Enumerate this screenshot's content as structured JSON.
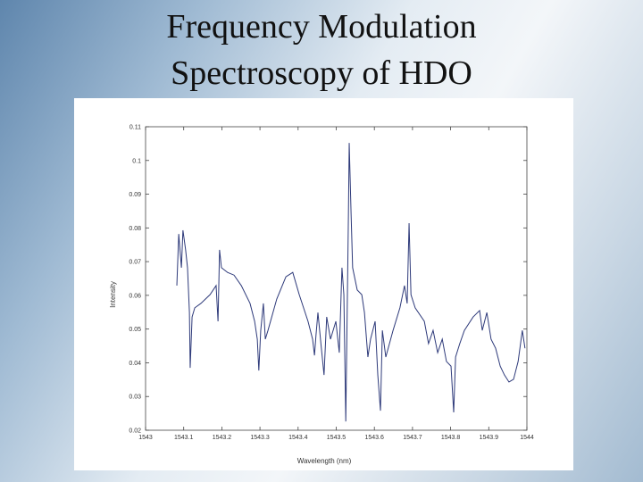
{
  "chart_data": {
    "type": "line",
    "title": [
      "Frequency Modulation",
      "Spectroscopy of HDO"
    ],
    "x_label": "Wavelength (nm)",
    "y_label": "Intensity",
    "xlim": [
      1543,
      1544
    ],
    "ylim": [
      0.02,
      0.11
    ],
    "xticks": [
      1543,
      1543.1,
      1543.2,
      1543.3,
      1543.4,
      1543.5,
      1543.6,
      1543.7,
      1543.8,
      1543.9,
      1544
    ],
    "yticks": [
      0.02,
      0.03,
      0.04,
      0.05,
      0.06,
      0.07,
      0.08,
      0.09,
      0.1,
      0.11
    ],
    "color": "#2e3a7a",
    "x": [
      1543.082,
      1543.087,
      1543.094,
      1543.098,
      1543.105,
      1543.11,
      1543.115,
      1543.117,
      1543.122,
      1543.129,
      1543.145,
      1543.169,
      1543.185,
      1543.19,
      1543.194,
      1543.199,
      1543.215,
      1543.232,
      1543.251,
      1543.274,
      1543.286,
      1543.293,
      1543.297,
      1543.302,
      1543.309,
      1543.314,
      1543.321,
      1543.344,
      1543.368,
      1543.386,
      1543.403,
      1543.426,
      1543.438,
      1543.443,
      1543.447,
      1543.452,
      1543.461,
      1543.468,
      1543.475,
      1543.485,
      1543.499,
      1543.508,
      1543.515,
      1543.52,
      1543.525,
      1543.532,
      1543.534,
      1543.539,
      1543.543,
      1543.555,
      1543.567,
      1543.574,
      1543.583,
      1543.59,
      1543.602,
      1543.609,
      1543.616,
      1543.621,
      1543.63,
      1543.649,
      1543.667,
      1543.679,
      1543.686,
      1543.691,
      1543.696,
      1543.707,
      1543.731,
      1543.742,
      1543.754,
      1543.766,
      1543.778,
      1543.789,
      1543.801,
      1543.808,
      1543.813,
      1543.824,
      1543.836,
      1543.859,
      1543.876,
      1543.883,
      1543.895,
      1543.906,
      1543.918,
      1543.93,
      1543.941,
      1543.953,
      1543.965,
      1543.977,
      1543.988,
      1543.995
    ],
    "values": [
      0.0629,
      0.0782,
      0.0682,
      0.0793,
      0.0735,
      0.0682,
      0.0549,
      0.0385,
      0.0536,
      0.0563,
      0.0576,
      0.0602,
      0.0629,
      0.0523,
      0.0735,
      0.0682,
      0.0668,
      0.066,
      0.0629,
      0.0576,
      0.0523,
      0.047,
      0.0377,
      0.0496,
      0.0576,
      0.047,
      0.0496,
      0.0589,
      0.0655,
      0.0668,
      0.0602,
      0.0523,
      0.047,
      0.0422,
      0.0483,
      0.0549,
      0.0443,
      0.0364,
      0.0536,
      0.047,
      0.0523,
      0.043,
      0.0682,
      0.0602,
      0.0226,
      0.084,
      0.1052,
      0.084,
      0.0682,
      0.0616,
      0.0602,
      0.0549,
      0.0417,
      0.047,
      0.0523,
      0.0364,
      0.0258,
      0.0496,
      0.0417,
      0.0496,
      0.0563,
      0.0629,
      0.0576,
      0.0814,
      0.0602,
      0.0563,
      0.0523,
      0.0457,
      0.0496,
      0.043,
      0.047,
      0.0404,
      0.039,
      0.0253,
      0.0417,
      0.0457,
      0.0496,
      0.0536,
      0.0555,
      0.0496,
      0.0549,
      0.047,
      0.0443,
      0.039,
      0.0364,
      0.0343,
      0.0351,
      0.0404,
      0.0496,
      0.0443
    ]
  }
}
